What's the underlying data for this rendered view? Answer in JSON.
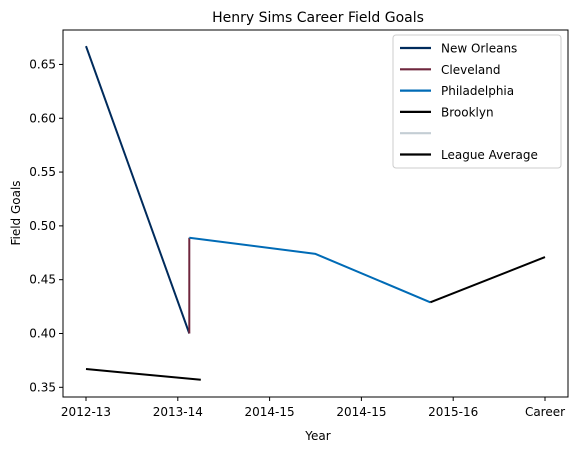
{
  "chart_data": {
    "type": "line",
    "title": "Henry Sims Career Field Goals",
    "xlabel": "Year",
    "ylabel": "Field Goals",
    "categories": [
      "2012-13",
      "2013-14",
      "2014-15",
      "2014-15",
      "2015-16",
      "Career"
    ],
    "ylim": [
      0.341,
      0.682
    ],
    "yticks": [
      0.35,
      0.4,
      0.45,
      0.5,
      0.55,
      0.6,
      0.65
    ],
    "grid": false,
    "legend_position": "top-right",
    "series": [
      {
        "name": "New Orleans",
        "color": "#002B5C",
        "points": [
          [
            0,
            0.667
          ],
          [
            1.125,
            0.4
          ]
        ]
      },
      {
        "name": "Cleveland",
        "color": "#6F263D",
        "points": [
          [
            1.125,
            0.4
          ],
          [
            1.125,
            0.489
          ]
        ]
      },
      {
        "name": "Philadelphia",
        "color": "#006BB6",
        "points": [
          [
            1.125,
            0.489
          ],
          [
            2.5,
            0.474
          ],
          [
            3.75,
            0.429
          ]
        ]
      },
      {
        "name": "Brooklyn",
        "color": "#000000",
        "points": [
          [
            3.75,
            0.429
          ],
          [
            5,
            0.471
          ]
        ]
      },
      {
        "name": "",
        "color": "#C4CED4",
        "points": []
      },
      {
        "name": "League Average",
        "color": "#000000",
        "points": [
          [
            0,
            0.367
          ],
          [
            1.25,
            0.357
          ]
        ]
      }
    ]
  }
}
